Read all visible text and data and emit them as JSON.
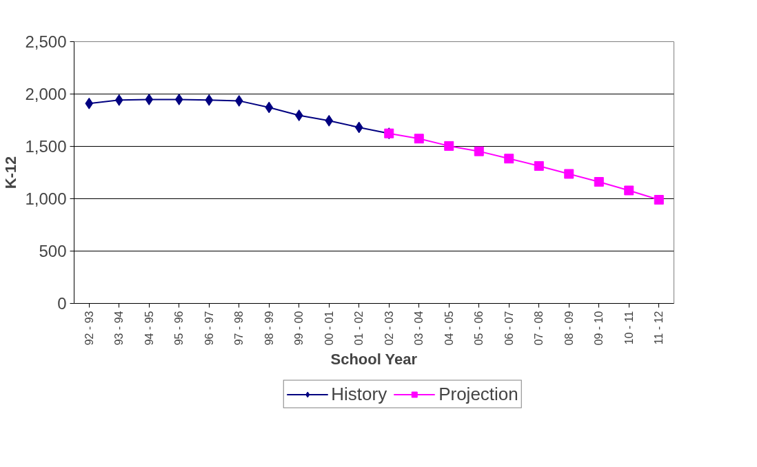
{
  "chart_data": {
    "type": "line",
    "xlabel": "School Year",
    "ylabel": "K-12",
    "categories": [
      "92 - 93",
      "93 - 94",
      "94 - 95",
      "95 - 96",
      "96 - 97",
      "97 - 98",
      "98 - 99",
      "99 - 00",
      "00 - 01",
      "01 - 02",
      "02 - 03",
      "03 - 04",
      "04 - 05",
      "05 - 06",
      "06 - 07",
      "07 - 08",
      "08 - 09",
      "09 - 10",
      "10 - 11",
      "11 - 12"
    ],
    "series": [
      {
        "name": "History",
        "color": "#000080",
        "marker": "diamond",
        "values": [
          1910,
          1942,
          1948,
          1948,
          1942,
          1935,
          1872,
          1796,
          1745,
          1681,
          1624,
          null,
          null,
          null,
          null,
          null,
          null,
          null,
          null,
          null
        ]
      },
      {
        "name": "Projection",
        "color": "#ff00ff",
        "marker": "square",
        "values": [
          null,
          null,
          null,
          null,
          null,
          null,
          null,
          null,
          null,
          null,
          1624,
          1574,
          1504,
          1453,
          1383,
          1313,
          1237,
          1161,
          1079,
          990
        ]
      }
    ],
    "ylim": [
      0,
      2500
    ],
    "yticks": [
      {
        "value": 0,
        "label": "0"
      },
      {
        "value": 500,
        "label": "500"
      },
      {
        "value": 1000,
        "label": "1,000"
      },
      {
        "value": 1500,
        "label": "1,500"
      },
      {
        "value": 2000,
        "label": "2,000"
      },
      {
        "value": 2500,
        "label": "2,500"
      }
    ],
    "grid": "y",
    "legend": "bottom",
    "line_style": "solid"
  }
}
